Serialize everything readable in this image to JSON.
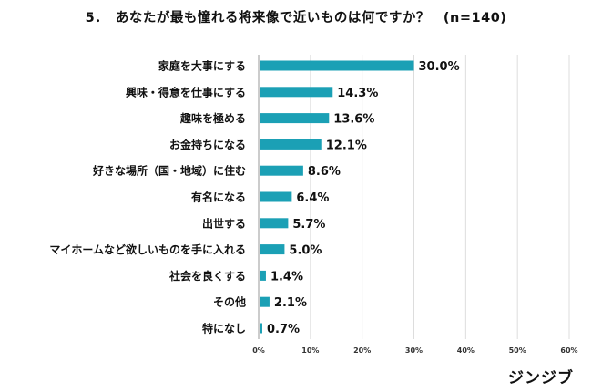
{
  "chart_data": {
    "type": "bar",
    "orientation": "horizontal",
    "title": "5．　あなたが最も憧れる将来像で近いものは何ですか？　(n=140)",
    "categories": [
      "家庭を大事にする",
      "興味・得意を仕事にする",
      "趣味を極める",
      "お金持ちになる",
      "好きな場所（国・地域）に住む",
      "有名になる",
      "出世する",
      "マイホームなど欲しいものを手に入れる",
      "社会を良くする",
      "その他",
      "特になし"
    ],
    "values": [
      30.0,
      14.3,
      13.6,
      12.1,
      8.6,
      6.4,
      5.7,
      5.0,
      1.4,
      2.1,
      0.7
    ],
    "value_labels": [
      "30.0%",
      "14.3%",
      "13.6%",
      "12.1%",
      "8.6%",
      "6.4%",
      "5.7%",
      "5.0%",
      "1.4%",
      "2.1%",
      "0.7%"
    ],
    "xlim": [
      0,
      60
    ],
    "x_ticks": [
      "0%",
      "10%",
      "20%",
      "30%",
      "40%",
      "50%",
      "60%"
    ],
    "grid": true,
    "bar_color": "#1ba0b5",
    "grid_color": "#dddddd"
  },
  "brand": {
    "logo_text": "ジンジブ"
  }
}
